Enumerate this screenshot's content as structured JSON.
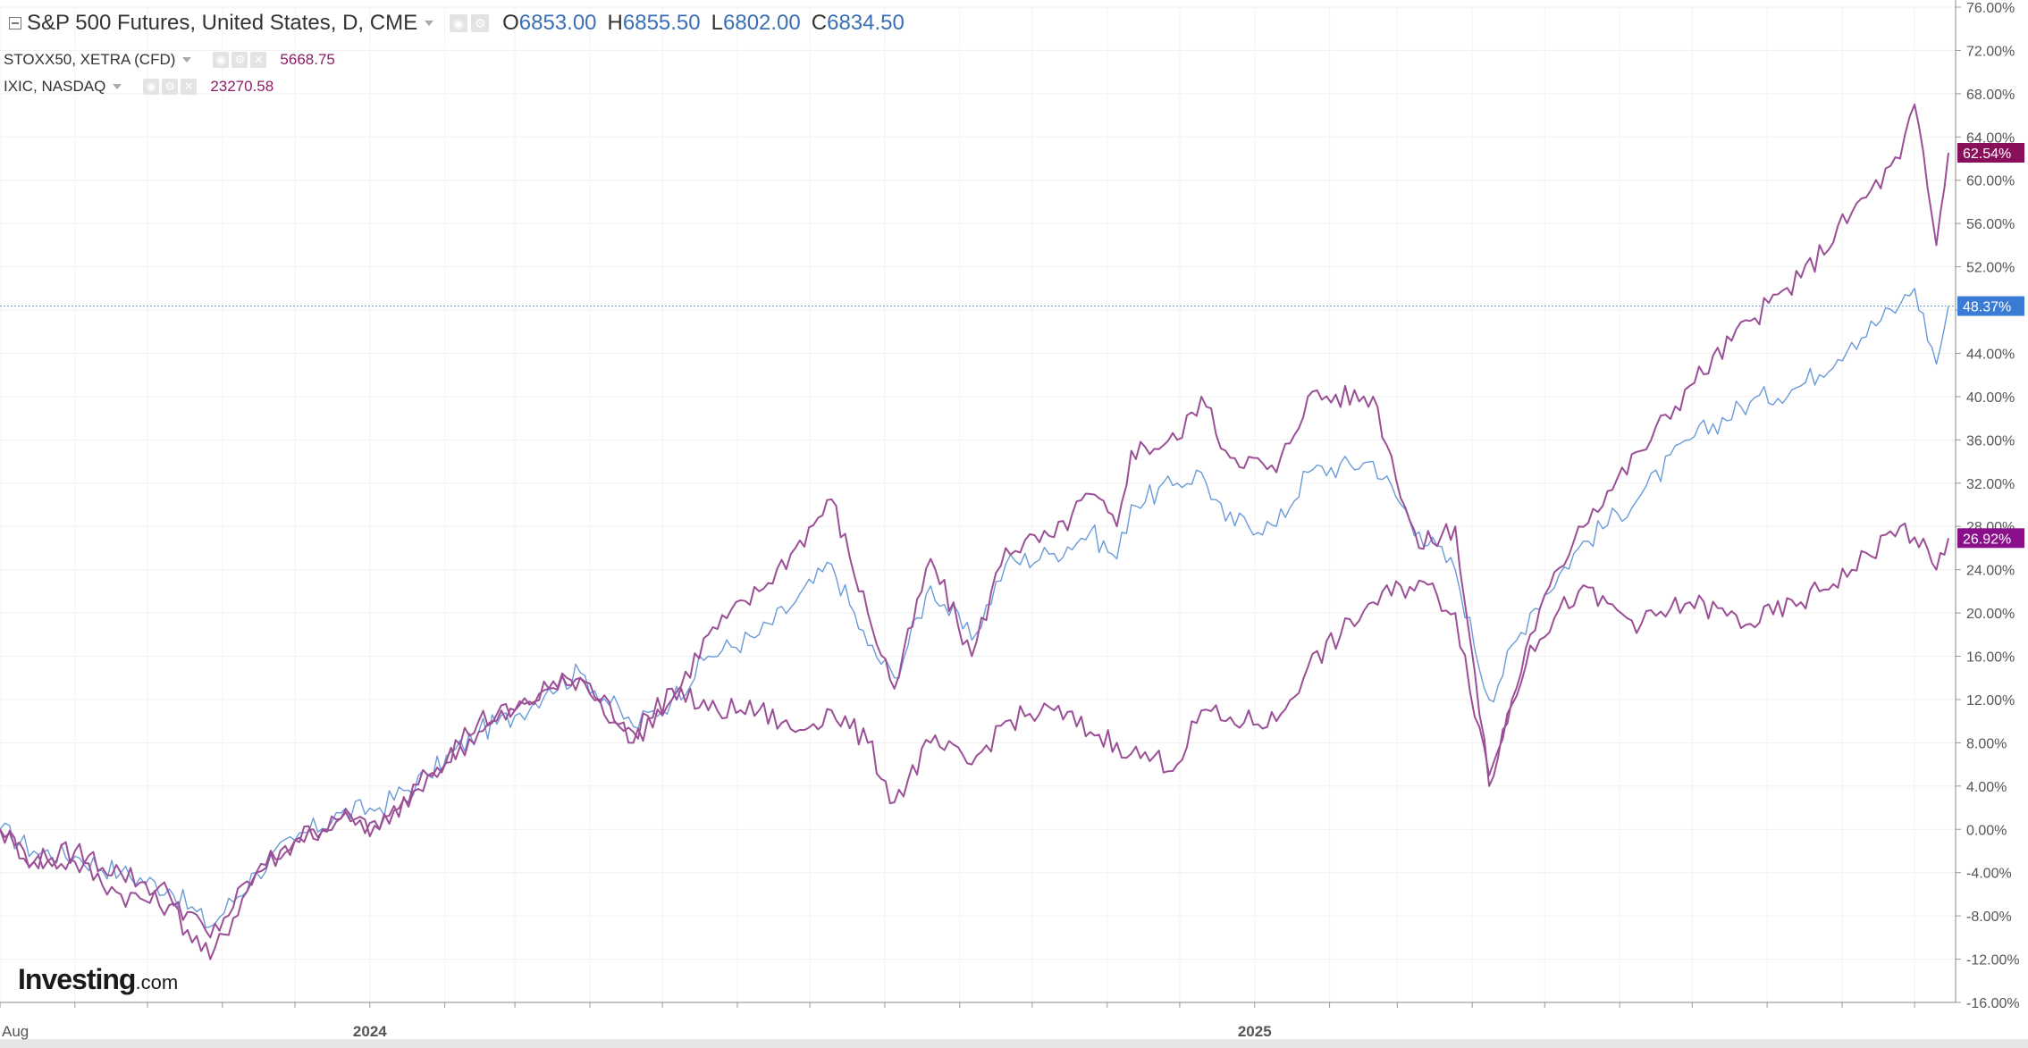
{
  "legend": {
    "main": {
      "title": "S&P 500 Futures, United States, D, CME",
      "open_key": "O",
      "open": "6853.00",
      "high_key": "H",
      "high": "6855.50",
      "low_key": "L",
      "low": "6802.00",
      "close_key": "C",
      "close": "6834.50"
    },
    "compare": [
      {
        "title": "STOXX50, XETRA (CFD)",
        "value": "5668.75"
      },
      {
        "title": "IXIC, NASDAQ",
        "value": "23270.58"
      }
    ]
  },
  "logo": {
    "brand": "Investing",
    "suffix": ".com"
  },
  "icons": {
    "collapse": "collapse-icon",
    "caret": "caret-down-icon",
    "eye": "eye-icon",
    "settings": "gear-icon",
    "close": "close-icon"
  },
  "colors": {
    "sp500": "#6a9bd8",
    "stoxx50": "#9b4f96",
    "ixic": "#9b4f96",
    "sp500_badge": "#3a7bd5",
    "ixic_badge": "#8a0f5a",
    "stoxx_badge": "#8a0f8a"
  },
  "chart_data": {
    "type": "line",
    "x_start": "2023-08-01",
    "x_end": "2025-10-15",
    "x_ticks": [
      {
        "date": "2023-08-01",
        "label": "Aug"
      },
      {
        "date": "2024-01-01",
        "label": "2024"
      },
      {
        "date": "2025-01-01",
        "label": "2025"
      }
    ],
    "ylim": [
      -16,
      76
    ],
    "y_ticks": [
      "76.00%",
      "72.00%",
      "68.00%",
      "64.00%",
      "60.00%",
      "56.00%",
      "52.00%",
      "48.00%",
      "44.00%",
      "40.00%",
      "36.00%",
      "32.00%",
      "28.00%",
      "24.00%",
      "20.00%",
      "16.00%",
      "12.00%",
      "8.00%",
      "4.00%",
      "0.00%",
      "-4.00%",
      "-8.00%",
      "-12.00%",
      "-16.00%"
    ],
    "grid": true,
    "crosshair_y": 48.37,
    "series": [
      {
        "name": "S&P 500 Futures",
        "last_label": "48.37%",
        "points": [
          [
            "2023-08-01",
            0
          ],
          [
            "2023-08-15",
            -2
          ],
          [
            "2023-09-01",
            -2.5
          ],
          [
            "2023-09-20",
            -4
          ],
          [
            "2023-10-10",
            -5.5
          ],
          [
            "2023-10-27",
            -9
          ],
          [
            "2023-11-15",
            -4
          ],
          [
            "2023-12-01",
            -1
          ],
          [
            "2023-12-20",
            1.5
          ],
          [
            "2024-01-05",
            2
          ],
          [
            "2024-01-25",
            5
          ],
          [
            "2024-02-15",
            9
          ],
          [
            "2024-03-01",
            10.5
          ],
          [
            "2024-03-15",
            13
          ],
          [
            "2024-03-28",
            14.5
          ],
          [
            "2024-04-19",
            9.5
          ],
          [
            "2024-05-05",
            12
          ],
          [
            "2024-05-20",
            16
          ],
          [
            "2024-06-10",
            18
          ],
          [
            "2024-06-25",
            21
          ],
          [
            "2024-07-10",
            24.5
          ],
          [
            "2024-07-25",
            17
          ],
          [
            "2024-08-05",
            14
          ],
          [
            "2024-08-20",
            22.5
          ],
          [
            "2024-09-06",
            17.5
          ],
          [
            "2024-09-20",
            24.5
          ],
          [
            "2024-10-10",
            25.5
          ],
          [
            "2024-10-25",
            27.5
          ],
          [
            "2024-11-05",
            25
          ],
          [
            "2024-11-11",
            30
          ],
          [
            "2024-11-30",
            32
          ],
          [
            "2024-12-10",
            33
          ],
          [
            "2024-12-20",
            28.5
          ],
          [
            "2025-01-10",
            28
          ],
          [
            "2025-01-23",
            33
          ],
          [
            "2025-02-19",
            34
          ],
          [
            "2025-03-10",
            27.5
          ],
          [
            "2025-03-25",
            24
          ],
          [
            "2025-04-08",
            12
          ],
          [
            "2025-04-25",
            20
          ],
          [
            "2025-05-15",
            26
          ],
          [
            "2025-06-10",
            31
          ],
          [
            "2025-06-30",
            36
          ],
          [
            "2025-07-25",
            39.5
          ],
          [
            "2025-08-15",
            41
          ],
          [
            "2025-09-05",
            45
          ],
          [
            "2025-09-25",
            48.5
          ],
          [
            "2025-10-01",
            50
          ],
          [
            "2025-10-10",
            43
          ],
          [
            "2025-10-15",
            48.37
          ]
        ]
      },
      {
        "name": "IXIC, NASDAQ",
        "last_label": "62.54%",
        "points": [
          [
            "2023-08-01",
            0
          ],
          [
            "2023-08-15",
            -3
          ],
          [
            "2023-09-01",
            -3
          ],
          [
            "2023-09-20",
            -6
          ],
          [
            "2023-10-10",
            -7
          ],
          [
            "2023-10-27",
            -12
          ],
          [
            "2023-11-15",
            -4
          ],
          [
            "2023-12-01",
            -1
          ],
          [
            "2023-12-20",
            1
          ],
          [
            "2024-01-05",
            0
          ],
          [
            "2024-01-25",
            5
          ],
          [
            "2024-02-15",
            9
          ],
          [
            "2024-03-01",
            11
          ],
          [
            "2024-03-15",
            13
          ],
          [
            "2024-03-28",
            14
          ],
          [
            "2024-04-19",
            9
          ],
          [
            "2024-05-05",
            12
          ],
          [
            "2024-05-20",
            18
          ],
          [
            "2024-06-10",
            22
          ],
          [
            "2024-06-25",
            26
          ],
          [
            "2024-07-10",
            30.5
          ],
          [
            "2024-07-25",
            20
          ],
          [
            "2024-08-05",
            13
          ],
          [
            "2024-08-20",
            25
          ],
          [
            "2024-09-06",
            16
          ],
          [
            "2024-09-20",
            26
          ],
          [
            "2024-10-10",
            27
          ],
          [
            "2024-10-25",
            31
          ],
          [
            "2024-11-05",
            28
          ],
          [
            "2024-11-11",
            35
          ],
          [
            "2024-11-30",
            36
          ],
          [
            "2024-12-10",
            40
          ],
          [
            "2024-12-20",
            35
          ],
          [
            "2025-01-10",
            33
          ],
          [
            "2025-01-23",
            40
          ],
          [
            "2025-02-19",
            40
          ],
          [
            "2025-03-10",
            26
          ],
          [
            "2025-03-25",
            28
          ],
          [
            "2025-04-08",
            4
          ],
          [
            "2025-04-25",
            18
          ],
          [
            "2025-05-15",
            28
          ],
          [
            "2025-06-10",
            35
          ],
          [
            "2025-06-30",
            41
          ],
          [
            "2025-07-25",
            47
          ],
          [
            "2025-08-15",
            51
          ],
          [
            "2025-09-05",
            57
          ],
          [
            "2025-09-25",
            62
          ],
          [
            "2025-10-01",
            67
          ],
          [
            "2025-10-10",
            54
          ],
          [
            "2025-10-15",
            62.54
          ]
        ]
      },
      {
        "name": "STOXX50, XETRA (CFD)",
        "last_label": "26.92%",
        "points": [
          [
            "2023-08-01",
            0
          ],
          [
            "2023-08-15",
            -3
          ],
          [
            "2023-09-01",
            -2
          ],
          [
            "2023-09-20",
            -4
          ],
          [
            "2023-10-10",
            -6
          ],
          [
            "2023-10-27",
            -10
          ],
          [
            "2023-11-15",
            -4
          ],
          [
            "2023-12-01",
            -1
          ],
          [
            "2023-12-20",
            1
          ],
          [
            "2024-01-05",
            0
          ],
          [
            "2024-01-25",
            5
          ],
          [
            "2024-02-15",
            10
          ],
          [
            "2024-03-01",
            11
          ],
          [
            "2024-03-15",
            13
          ],
          [
            "2024-03-28",
            14
          ],
          [
            "2024-04-19",
            8
          ],
          [
            "2024-05-05",
            13
          ],
          [
            "2024-05-20",
            11
          ],
          [
            "2024-06-10",
            11
          ],
          [
            "2024-06-25",
            9
          ],
          [
            "2024-07-10",
            11
          ],
          [
            "2024-07-25",
            8
          ],
          [
            "2024-08-05",
            2.5
          ],
          [
            "2024-08-20",
            8
          ],
          [
            "2024-09-06",
            6
          ],
          [
            "2024-09-20",
            10
          ],
          [
            "2024-10-10",
            11
          ],
          [
            "2024-10-25",
            9
          ],
          [
            "2024-11-05",
            8
          ],
          [
            "2024-11-11",
            7
          ],
          [
            "2024-11-30",
            6
          ],
          [
            "2024-12-10",
            11
          ],
          [
            "2024-12-20",
            10
          ],
          [
            "2025-01-10",
            10
          ],
          [
            "2025-01-23",
            15
          ],
          [
            "2025-02-19",
            21
          ],
          [
            "2025-03-10",
            23
          ],
          [
            "2025-03-25",
            20
          ],
          [
            "2025-04-08",
            5
          ],
          [
            "2025-04-25",
            17
          ],
          [
            "2025-05-15",
            22
          ],
          [
            "2025-06-10",
            19
          ],
          [
            "2025-06-30",
            21
          ],
          [
            "2025-07-25",
            19
          ],
          [
            "2025-08-15",
            21
          ],
          [
            "2025-09-05",
            24
          ],
          [
            "2025-09-25",
            28
          ],
          [
            "2025-10-01",
            27
          ],
          [
            "2025-10-10",
            24
          ],
          [
            "2025-10-15",
            26.92
          ]
        ]
      }
    ]
  }
}
